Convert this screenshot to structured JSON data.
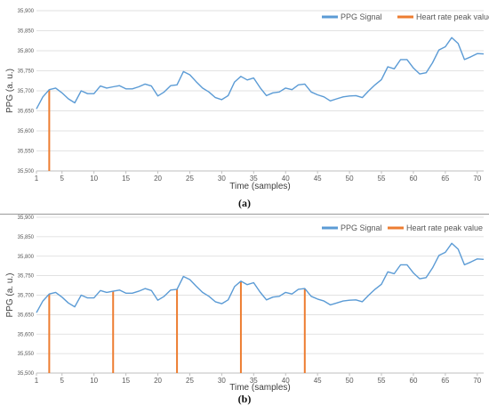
{
  "chart_data": [
    {
      "type": "line",
      "caption": "(a)",
      "xlabel": "Time (samples)",
      "ylabel": "PPG (a. u.)",
      "xlim": [
        1,
        71
      ],
      "ylim": [
        35500,
        35900
      ],
      "yticks": [
        "35,500",
        "35,550",
        "35,600",
        "35,650",
        "35,700",
        "35,750",
        "35,800",
        "35,850",
        "35,900"
      ],
      "xticks": [
        "1",
        "5",
        "10",
        "15",
        "20",
        "25",
        "30",
        "35",
        "40",
        "45",
        "50",
        "55",
        "60",
        "65",
        "70"
      ],
      "grid": true,
      "legend": "top-right",
      "series": [
        {
          "name": "PPG Signal",
          "color": "#5B9BD5",
          "x": [
            1,
            2,
            3,
            4,
            5,
            6,
            7,
            8,
            9,
            10,
            11,
            12,
            13,
            14,
            15,
            16,
            17,
            18,
            19,
            20,
            21,
            22,
            23,
            24,
            25,
            26,
            27,
            28,
            29,
            30,
            31,
            32,
            33,
            34,
            35,
            36,
            37,
            38,
            39,
            40,
            41,
            42,
            43,
            44,
            45,
            46,
            47,
            48,
            49,
            50,
            51,
            52,
            53,
            54,
            55,
            56,
            57,
            58,
            59,
            60,
            61,
            62,
            63,
            64,
            65,
            66,
            67,
            68,
            69,
            70,
            71
          ],
          "values": [
            35655,
            35685,
            35703,
            35707,
            35695,
            35680,
            35670,
            35700,
            35693,
            35693,
            35712,
            35707,
            35710,
            35713,
            35705,
            35705,
            35710,
            35717,
            35712,
            35687,
            35697,
            35713,
            35715,
            35748,
            35740,
            35723,
            35707,
            35697,
            35683,
            35678,
            35688,
            35722,
            35736,
            35727,
            35732,
            35708,
            35688,
            35695,
            35697,
            35707,
            35703,
            35715,
            35717,
            35697,
            35690,
            35685,
            35675,
            35680,
            35685,
            35687,
            35688,
            35683,
            35700,
            35715,
            35728,
            35760,
            35755,
            35778,
            35778,
            35757,
            35742,
            35745,
            35770,
            35802,
            35810,
            35833,
            35818,
            35778,
            35785,
            35793,
            35792
          ]
        },
        {
          "name": "Heart rate peak value",
          "color": "#ED7D31",
          "peaks": [
            {
              "x": 3,
              "y": 35703
            }
          ]
        }
      ]
    },
    {
      "type": "line",
      "caption": "(b)",
      "xlabel": "Time (samples)",
      "ylabel": "PPG (a. u.)",
      "xlim": [
        1,
        71
      ],
      "ylim": [
        35500,
        35900
      ],
      "yticks": [
        "35,500",
        "35,550",
        "35,600",
        "35,650",
        "35,700",
        "35,750",
        "35,800",
        "35,850",
        "35,900"
      ],
      "xticks": [
        "1",
        "5",
        "10",
        "15",
        "20",
        "25",
        "30",
        "35",
        "40",
        "45",
        "50",
        "55",
        "60",
        "65",
        "70"
      ],
      "grid": true,
      "legend": "top-right",
      "series": [
        {
          "name": "PPG Signal",
          "color": "#5B9BD5",
          "x": [
            1,
            2,
            3,
            4,
            5,
            6,
            7,
            8,
            9,
            10,
            11,
            12,
            13,
            14,
            15,
            16,
            17,
            18,
            19,
            20,
            21,
            22,
            23,
            24,
            25,
            26,
            27,
            28,
            29,
            30,
            31,
            32,
            33,
            34,
            35,
            36,
            37,
            38,
            39,
            40,
            41,
            42,
            43,
            44,
            45,
            46,
            47,
            48,
            49,
            50,
            51,
            52,
            53,
            54,
            55,
            56,
            57,
            58,
            59,
            60,
            61,
            62,
            63,
            64,
            65,
            66,
            67,
            68,
            69,
            70,
            71
          ],
          "values": [
            35655,
            35685,
            35703,
            35707,
            35695,
            35680,
            35670,
            35700,
            35693,
            35693,
            35712,
            35707,
            35710,
            35713,
            35705,
            35705,
            35710,
            35717,
            35712,
            35687,
            35697,
            35713,
            35715,
            35748,
            35740,
            35723,
            35707,
            35697,
            35683,
            35678,
            35688,
            35722,
            35736,
            35727,
            35732,
            35708,
            35688,
            35695,
            35697,
            35707,
            35703,
            35715,
            35717,
            35697,
            35690,
            35685,
            35675,
            35680,
            35685,
            35687,
            35688,
            35683,
            35700,
            35715,
            35728,
            35760,
            35755,
            35778,
            35778,
            35757,
            35742,
            35745,
            35770,
            35802,
            35810,
            35833,
            35818,
            35778,
            35785,
            35793,
            35792
          ]
        },
        {
          "name": "Heart rate peak value",
          "color": "#ED7D31",
          "peaks": [
            {
              "x": 3,
              "y": 35703
            },
            {
              "x": 13,
              "y": 35710
            },
            {
              "x": 23,
              "y": 35715
            },
            {
              "x": 33,
              "y": 35736
            },
            {
              "x": 43,
              "y": 35717
            }
          ]
        }
      ]
    }
  ]
}
